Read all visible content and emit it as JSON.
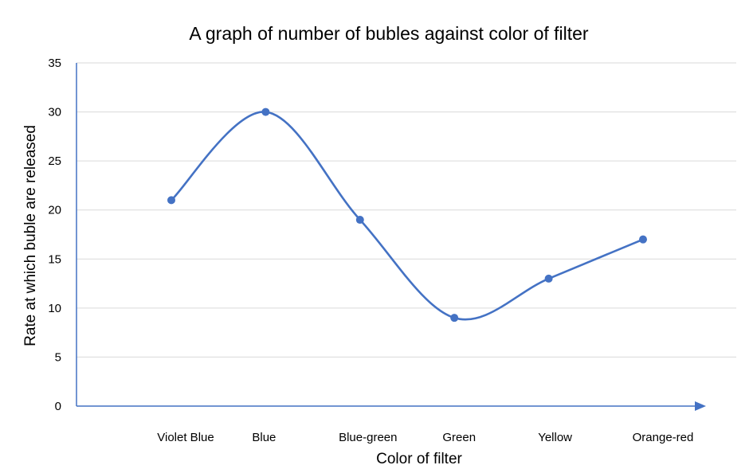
{
  "chart_data": {
    "type": "line",
    "title": "A graph of number of bubles against color of filter",
    "xlabel": "Color of filter",
    "ylabel": "Rate at which buble are released",
    "categories": [
      "Violet Blue",
      "Blue",
      "Blue-green",
      "Green",
      "Yellow",
      "Orange-red"
    ],
    "series": [
      {
        "values": [
          21,
          30,
          19,
          9,
          13,
          17
        ]
      }
    ],
    "ylim": [
      0,
      35
    ],
    "yticks": [
      0,
      5,
      10,
      15,
      20,
      25,
      30,
      35
    ],
    "smooth": true,
    "grid": true,
    "legend": "none",
    "line_color": "#4472C4",
    "grid_color": "#D9D9D9"
  }
}
